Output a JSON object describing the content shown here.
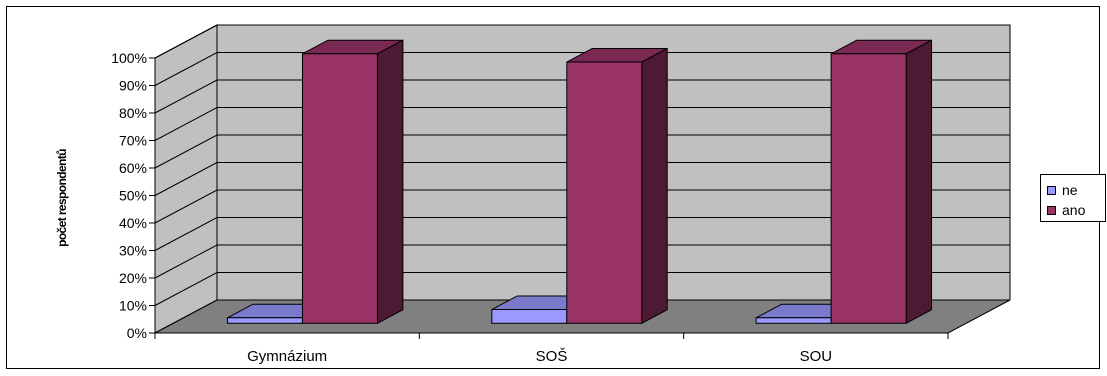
{
  "chart_data": {
    "type": "bar",
    "title": "",
    "xlabel": "",
    "ylabel": "počet respondentů",
    "categories": [
      "Gymnázium",
      "SOŠ",
      "SOU"
    ],
    "series": [
      {
        "name": "ne",
        "values": [
          2,
          5,
          2
        ],
        "color": "#9999ff"
      },
      {
        "name": "ano",
        "values": [
          98,
          95,
          98
        ],
        "color": "#993366"
      }
    ],
    "ylim": [
      0,
      100
    ],
    "yticks": [
      "0%",
      "10%",
      "20%",
      "30%",
      "40%",
      "50%",
      "60%",
      "70%",
      "80%",
      "90%",
      "100%"
    ],
    "grid": true,
    "legend": "right",
    "colors": {
      "wall": "#c0c0c0",
      "floor": "#808080"
    }
  }
}
